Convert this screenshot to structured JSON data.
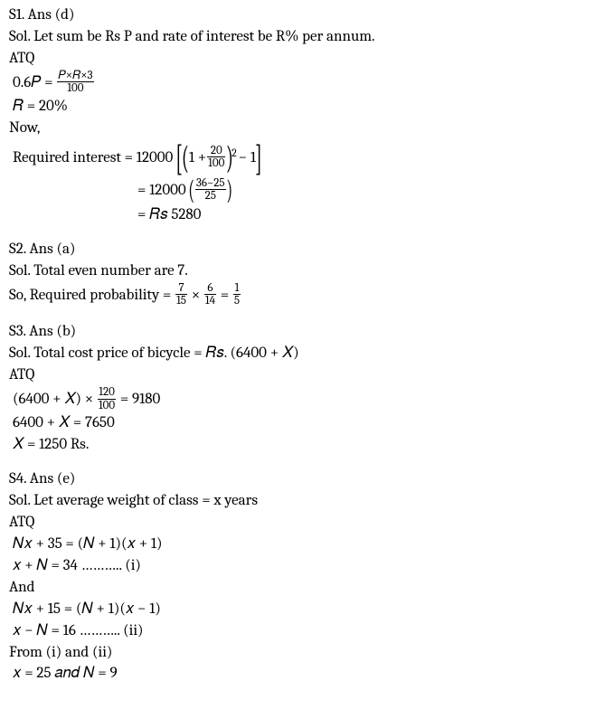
{
  "s1": {
    "header": "S1. Ans (d)",
    "soltext": "Sol. Let sum be Rs P and rate of interest be R% per annum.",
    "atq": "ATQ",
    "eq1_lhs": "0.6𝑃 =",
    "eq1_frac_num": "𝑃×𝑅×3",
    "eq1_frac_den": "100",
    "eq2": "𝑅 = 20%",
    "now": "Now,",
    "req_label": "Required interest = 12000 ",
    "ri_inner_1": "1 +",
    "ri_frac1_num": "20",
    "ri_frac1_den": "100",
    "ri_pow": "2",
    "ri_minus1": " − 1",
    "ri_line2_prefix": "= 12000 ",
    "ri_frac2_num": "36−25",
    "ri_frac2_den": "25",
    "ri_line3": "= 𝑅𝑠 5280"
  },
  "s2": {
    "header": "S2. Ans (a)",
    "soltext": "Sol. Total even number are 7.",
    "prob_label": "So, Required probability =",
    "f1n": "7",
    "f1d": "15",
    "times": "×",
    "f2n": "6",
    "f2d": "14",
    "eq": "=",
    "f3n": "1",
    "f3d": "5"
  },
  "s3": {
    "header": "S3. Ans (b)",
    "soltext": "Sol. Total cost price of bicycle = 𝑅𝑠. (6400 + 𝑋)",
    "atq": "ATQ",
    "eq1_lhs": "(6400 + 𝑋) ×",
    "eq1_frac_num": "120",
    "eq1_frac_den": "100",
    "eq1_rhs": "= 9180",
    "eq2": "6400 + 𝑋 = 7650",
    "eq3": "𝑋 = 1250 Rs."
  },
  "s4": {
    "header": "S4. Ans (e)",
    "soltext": "Sol. Let average weight of class = x years",
    "atq": "ATQ",
    "eq1": "𝑁𝑥 + 35 = (𝑁 + 1)(𝑥 + 1)",
    "eq2": "𝑥 + 𝑁 = 34 ……….. (i)",
    "and": "And",
    "eq3": "𝑁𝑥 + 15 = (𝑁 + 1)(𝑥 − 1)",
    "eq4": "𝑥 − 𝑁 = 16 ……….. (ii)",
    "from": "From (i) and (ii)",
    "eq5": "𝑥 = 25 𝑎𝑛𝑑 𝑁 = 9"
  }
}
